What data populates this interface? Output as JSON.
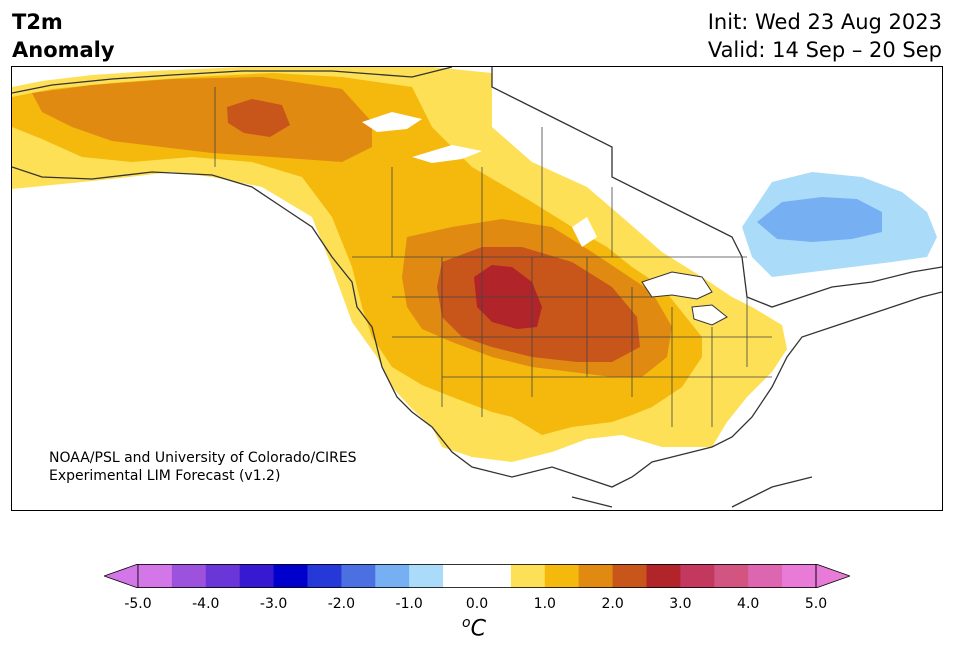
{
  "header": {
    "title_line1": "T2m",
    "title_line2": "Anomaly",
    "init": "Init: Wed 23 Aug 2023",
    "valid": "Valid: 14 Sep – 20 Sep"
  },
  "credit": {
    "line1": "NOAA/PSL and University of Colorado/CIRES",
    "line2": "Experimental LIM Forecast (v1.2)"
  },
  "colorbar": {
    "unit_base": "C",
    "unit_sup": "o",
    "ticks": [
      "-5.0",
      "-4.0",
      "-3.0",
      "-2.0",
      "-1.0",
      "0.0",
      "1.0",
      "2.0",
      "3.0",
      "4.0",
      "5.0"
    ],
    "colors": [
      "#d276e8",
      "#9d52de",
      "#6a36d8",
      "#3819d2",
      "#0000cc",
      "#2638d8",
      "#4a70e2",
      "#76b0f2",
      "#aadcfa",
      "#ffffff",
      "#ffffff",
      "#fde055",
      "#f4b90c",
      "#e08a12",
      "#c8561a",
      "#b0242a",
      "#c2385e",
      "#d15580",
      "#dd66b0",
      "#e87ad8"
    ],
    "over_color": "#e87ad8",
    "under_color": "#d276e8"
  },
  "anomaly_regions": [
    {
      "level": "1.0",
      "color": "#fde055"
    },
    {
      "level": "1.5",
      "color": "#f4b90c"
    },
    {
      "level": "2.0",
      "color": "#e08a12"
    },
    {
      "level": "2.5",
      "color": "#c8561a"
    },
    {
      "level": "3.0",
      "color": "#b0242a"
    },
    {
      "level": "-1.0",
      "color": "#aadcfa"
    },
    {
      "level": "-1.5",
      "color": "#76b0f2"
    }
  ]
}
